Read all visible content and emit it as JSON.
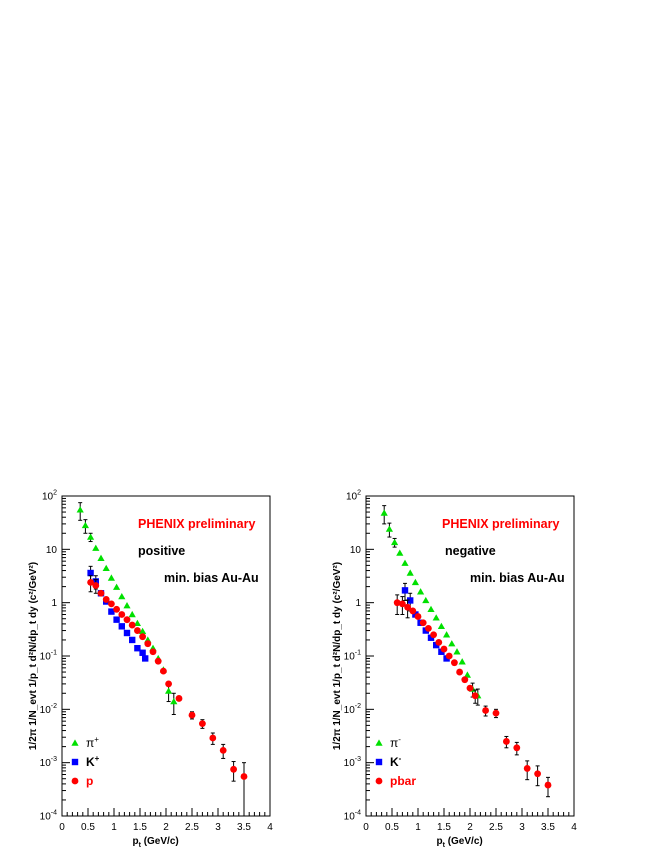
{
  "chart_data": [
    {
      "type": "scatter",
      "panel": "left",
      "xlim": [
        0,
        4
      ],
      "ylim": [
        0.0001,
        100
      ],
      "yscale": "log",
      "x_ticks": [
        "0",
        "0.5",
        "1",
        "1.5",
        "2",
        "2.5",
        "3",
        "3.5",
        "4"
      ],
      "y_ticks": [
        {
          "base": "10",
          "exp": "-4"
        },
        {
          "base": "10",
          "exp": "-3"
        },
        {
          "base": "10",
          "exp": "-2"
        },
        {
          "base": "10",
          "exp": "-1"
        },
        {
          "base": "1",
          "exp": ""
        },
        {
          "base": "10",
          "exp": ""
        },
        {
          "base": "10",
          "exp": "2"
        }
      ],
      "xlabel": {
        "main": "p",
        "sub": "t",
        "rest": " (GeV/c)"
      },
      "ylabel": "1/2π 1/N_evt 1/p_t d²N/dp_t dy (c²/GeV²)",
      "annotations": [
        {
          "text": "PHENIX preliminary",
          "style": "red"
        },
        {
          "text": "positive",
          "style": "black"
        },
        {
          "text": "min. bias Au-Au",
          "style": "black"
        }
      ],
      "legend": "bottom-left",
      "series": [
        {
          "name": "π",
          "sup": "+",
          "marker": "triangle",
          "color": "#00e000",
          "points": [
            [
              0.35,
              55,
              20
            ],
            [
              0.45,
              28,
              8
            ],
            [
              0.55,
              17,
              3
            ],
            [
              0.65,
              10.5,
              0
            ],
            [
              0.75,
              6.8,
              0
            ],
            [
              0.85,
              4.4,
              0
            ],
            [
              0.95,
              2.9,
              0
            ],
            [
              1.05,
              1.95,
              0
            ],
            [
              1.15,
              1.3,
              0
            ],
            [
              1.25,
              0.88,
              0
            ],
            [
              1.35,
              0.6,
              0
            ],
            [
              1.45,
              0.41,
              0
            ],
            [
              1.55,
              0.29,
              0
            ],
            [
              1.65,
              0.2,
              0
            ],
            [
              1.75,
              0.14,
              0
            ],
            [
              1.85,
              0.09,
              0
            ],
            [
              1.95,
              0.055,
              0
            ],
            [
              2.05,
              0.022,
              0.008
            ],
            [
              2.15,
              0.014,
              0.006
            ]
          ]
        },
        {
          "name": "K",
          "sup": "+",
          "marker": "square",
          "color": "#0000ff",
          "points": [
            [
              0.55,
              3.6,
              1.2
            ],
            [
              0.65,
              2.5,
              0.7
            ],
            [
              0.75,
              1.5,
              0
            ],
            [
              0.85,
              1.05,
              0
            ],
            [
              0.95,
              0.68,
              0
            ],
            [
              1.05,
              0.48,
              0
            ],
            [
              1.15,
              0.36,
              0
            ],
            [
              1.25,
              0.27,
              0
            ],
            [
              1.35,
              0.2,
              0
            ],
            [
              1.45,
              0.14,
              0
            ],
            [
              1.55,
              0.115,
              0
            ],
            [
              1.6,
              0.09,
              0
            ]
          ]
        },
        {
          "name": "p",
          "sup": "",
          "marker": "circle",
          "color": "#ff0000",
          "points": [
            [
              0.55,
              2.4,
              0.8
            ],
            [
              0.65,
              2.1,
              0.6
            ],
            [
              0.75,
              1.5,
              0
            ],
            [
              0.85,
              1.15,
              0
            ],
            [
              0.95,
              0.95,
              0
            ],
            [
              1.05,
              0.75,
              0
            ],
            [
              1.15,
              0.6,
              0
            ],
            [
              1.25,
              0.48,
              0
            ],
            [
              1.35,
              0.38,
              0
            ],
            [
              1.45,
              0.3,
              0
            ],
            [
              1.55,
              0.23,
              0
            ],
            [
              1.65,
              0.17,
              0
            ],
            [
              1.75,
              0.12,
              0
            ],
            [
              1.85,
              0.08,
              0
            ],
            [
              1.95,
              0.052,
              0
            ],
            [
              2.05,
              0.03,
              0
            ],
            [
              2.25,
              0.016,
              0
            ],
            [
              2.5,
              0.0078,
              0.0012
            ],
            [
              2.7,
              0.0054,
              0.001
            ],
            [
              2.9,
              0.0029,
              0.0007
            ],
            [
              3.1,
              0.0017,
              0.0005
            ],
            [
              3.3,
              0.00075,
              0.0003
            ],
            [
              3.5,
              0.00055,
              0.00045
            ]
          ]
        }
      ]
    },
    {
      "type": "scatter",
      "panel": "right",
      "xlim": [
        0,
        4
      ],
      "ylim": [
        0.0001,
        100
      ],
      "yscale": "log",
      "x_ticks": [
        "0",
        "0.5",
        "1",
        "1.5",
        "2",
        "2.5",
        "3",
        "3.5",
        "4"
      ],
      "y_ticks": [
        {
          "base": "10",
          "exp": "-4"
        },
        {
          "base": "10",
          "exp": "-3"
        },
        {
          "base": "10",
          "exp": "-2"
        },
        {
          "base": "10",
          "exp": "-1"
        },
        {
          "base": "1",
          "exp": ""
        },
        {
          "base": "10",
          "exp": ""
        },
        {
          "base": "10",
          "exp": "2"
        }
      ],
      "xlabel": {
        "main": "p",
        "sub": "t",
        "rest": " (GeV/c)"
      },
      "ylabel": "1/2π 1/N_evt 1/p_t d²N/dp_t dy (c²/GeV²)",
      "annotations": [
        {
          "text": "PHENIX preliminary",
          "style": "red"
        },
        {
          "text": "negative",
          "style": "black"
        },
        {
          "text": "min. bias Au-Au",
          "style": "black"
        }
      ],
      "legend": "bottom-left",
      "series": [
        {
          "name": "π",
          "sup": "-",
          "marker": "triangle",
          "color": "#00e000",
          "points": [
            [
              0.35,
              48,
              18
            ],
            [
              0.45,
              24,
              7
            ],
            [
              0.55,
              13.5,
              2.5
            ],
            [
              0.65,
              8.5,
              0
            ],
            [
              0.75,
              5.5,
              0
            ],
            [
              0.85,
              3.6,
              0
            ],
            [
              0.95,
              2.4,
              0
            ],
            [
              1.05,
              1.6,
              0
            ],
            [
              1.15,
              1.1,
              0
            ],
            [
              1.25,
              0.75,
              0
            ],
            [
              1.35,
              0.52,
              0
            ],
            [
              1.45,
              0.36,
              0
            ],
            [
              1.55,
              0.25,
              0
            ],
            [
              1.65,
              0.17,
              0
            ],
            [
              1.75,
              0.12,
              0
            ],
            [
              1.85,
              0.078,
              0
            ],
            [
              1.95,
              0.044,
              0
            ],
            [
              2.05,
              0.024,
              0.007
            ],
            [
              2.15,
              0.018,
              0.006
            ]
          ]
        },
        {
          "name": "K",
          "sup": "-",
          "marker": "square",
          "color": "#0000ff",
          "points": [
            [
              0.75,
              1.7,
              0.6
            ],
            [
              0.85,
              1.1,
              0.4
            ],
            [
              0.95,
              0.6,
              0
            ],
            [
              1.05,
              0.42,
              0
            ],
            [
              1.15,
              0.3,
              0
            ],
            [
              1.25,
              0.22,
              0
            ],
            [
              1.35,
              0.16,
              0
            ],
            [
              1.45,
              0.12,
              0
            ],
            [
              1.55,
              0.09,
              0
            ]
          ]
        },
        {
          "name": "pbar",
          "sup": "",
          "marker": "circle",
          "color": "#ff0000",
          "points": [
            [
              0.6,
              1.0,
              0.4
            ],
            [
              0.7,
              0.95,
              0.35
            ],
            [
              0.8,
              0.82,
              0.3
            ],
            [
              0.9,
              0.7,
              0
            ],
            [
              1.0,
              0.55,
              0
            ],
            [
              1.1,
              0.42,
              0
            ],
            [
              1.2,
              0.33,
              0
            ],
            [
              1.3,
              0.25,
              0
            ],
            [
              1.4,
              0.18,
              0
            ],
            [
              1.5,
              0.135,
              0
            ],
            [
              1.6,
              0.1,
              0
            ],
            [
              1.7,
              0.075,
              0
            ],
            [
              1.8,
              0.05,
              0
            ],
            [
              1.9,
              0.036,
              0
            ],
            [
              2.0,
              0.025,
              0
            ],
            [
              2.1,
              0.018,
              0.005
            ],
            [
              2.3,
              0.0095,
              0.002
            ],
            [
              2.5,
              0.0085,
              0.0015
            ],
            [
              2.7,
              0.0025,
              0.0006
            ],
            [
              2.9,
              0.0019,
              0.0005
            ],
            [
              3.1,
              0.00078,
              0.0003
            ],
            [
              3.3,
              0.00062,
              0.00025
            ],
            [
              3.5,
              0.00038,
              0.00015
            ]
          ]
        }
      ]
    }
  ]
}
